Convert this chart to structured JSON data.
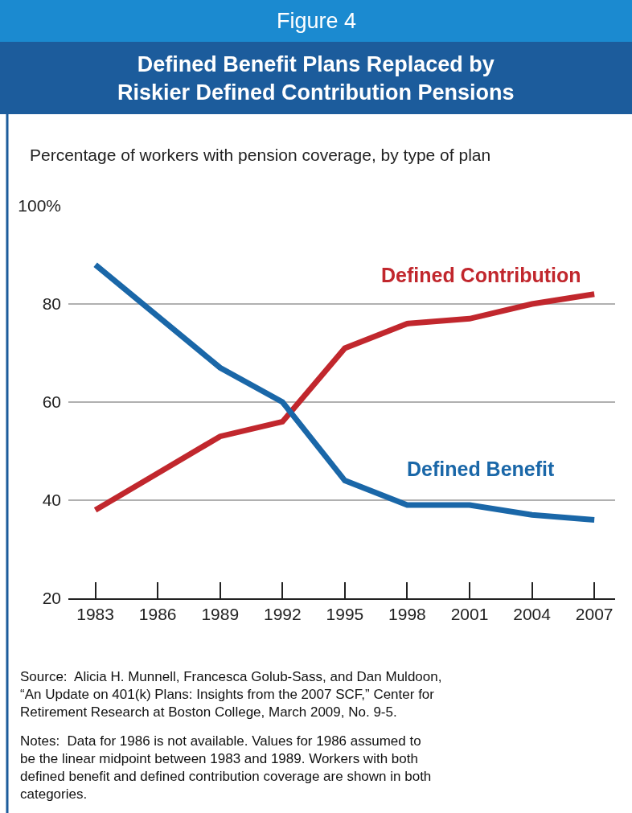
{
  "chart_data": {
    "type": "line",
    "title": "Figure 4",
    "subtitle": "Defined Benefit Plans Replaced by Riskier Defined Contribution Pensions",
    "ylabel": "Percentage of workers with pension coverage, by type of plan",
    "x": [
      1983,
      1986,
      1989,
      1992,
      1995,
      1998,
      2001,
      2004,
      2007
    ],
    "xlim": [
      1981.7,
      2008
    ],
    "xticks": [
      1983,
      1986,
      1989,
      1992,
      1995,
      1998,
      2001,
      2004,
      2007
    ],
    "ylim": [
      20,
      100
    ],
    "yticks": [
      20,
      40,
      60,
      80,
      {
        "value": 100,
        "label": "100%"
      }
    ],
    "grid": "y",
    "legend": false,
    "marker": "none",
    "line_style": "solid",
    "series": [
      {
        "name": "Defined Contribution",
        "color": "#c1272d",
        "values": [
          38,
          45.5,
          53,
          56,
          71,
          76,
          77,
          80,
          82
        ]
      },
      {
        "name": "Defined Benefit",
        "color": "#1a67a8",
        "values": [
          88,
          77.5,
          67,
          60,
          44,
          39,
          39,
          37,
          36
        ]
      }
    ],
    "annotations": [
      "Source:  Alicia H. Munnell, Francesca Golub-Sass, and Dan Muldoon, “An Update on 401(k) Plans: Insights from the 2007 SCF,” Center for Retirement Research at Boston College, March 2009, No. 9-5.",
      "Notes:  Data for 1986 is not available. Values for 1986 assumed to be the linear midpoint between 1983 and 1989. Workers with both defined benefit and defined contribution coverage are shown in both categories."
    ]
  }
}
